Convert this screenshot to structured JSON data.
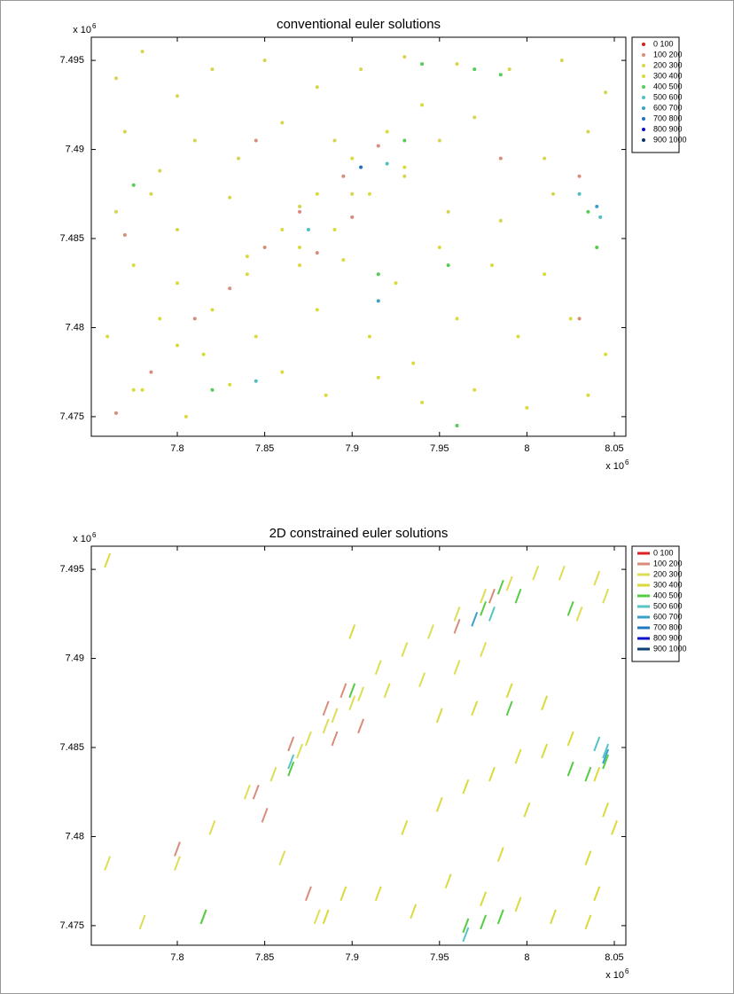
{
  "chart_data": [
    {
      "type": "scatter",
      "marker": "dot",
      "title": "conventional euler solutions",
      "x_multiplier": {
        "base": "x 10",
        "power": "6"
      },
      "y_multiplier": {
        "base": "x 10",
        "power": "6"
      },
      "xlim": [
        7.7508,
        8.0566
      ],
      "ylim": [
        7.4739,
        7.4963
      ],
      "xticks": [
        7.8,
        7.85,
        7.9,
        7.95,
        8,
        8.05
      ],
      "yticks": [
        7.475,
        7.48,
        7.485,
        7.49,
        7.495
      ],
      "legend": "outside-right",
      "series": [
        {
          "name": "0 100",
          "color": "#d02020",
          "x": [],
          "y": []
        },
        {
          "name": "100 200",
          "color": "#d98c7a",
          "x": [
            7.765,
            7.785,
            7.81,
            7.83,
            7.85,
            7.87,
            7.895,
            7.915,
            7.88,
            7.9,
            7.77,
            7.845,
            7.985,
            8.03,
            8.03
          ],
          "y": [
            7.4752,
            7.4775,
            7.4805,
            7.4822,
            7.4845,
            7.4865,
            7.4885,
            7.4902,
            7.4842,
            7.4862,
            7.4852,
            7.4905,
            7.4895,
            7.4885,
            7.4805
          ]
        },
        {
          "name": "200 300",
          "color": "#d6d64e",
          "x": [
            7.765,
            7.78,
            7.8,
            7.82,
            7.85,
            7.88,
            7.905,
            7.93,
            7.96,
            7.99,
            8.02,
            8.045,
            7.77,
            7.79,
            7.81,
            7.835,
            7.86,
            7.89,
            7.95,
            7.97,
            8.01,
            8.035,
            7.765,
            7.785,
            7.8,
            7.83,
            7.87,
            7.9,
            7.93,
            7.955,
            7.985,
            8.015
          ],
          "y": [
            7.494,
            7.4955,
            7.493,
            7.4945,
            7.495,
            7.4935,
            7.4945,
            7.4952,
            7.4948,
            7.4945,
            7.495,
            7.4932,
            7.491,
            7.4888,
            7.4905,
            7.4895,
            7.4915,
            7.4905,
            7.4905,
            7.4918,
            7.4895,
            7.491,
            7.4865,
            7.4875,
            7.4855,
            7.4873,
            7.4868,
            7.4875,
            7.4885,
            7.4865,
            7.486,
            7.4875
          ]
        },
        {
          "name": "300 400",
          "color": "#dada3a",
          "x": [
            7.775,
            7.8,
            7.84,
            7.87,
            7.895,
            7.925,
            7.95,
            7.98,
            8.01,
            8.04,
            7.76,
            7.79,
            7.815,
            7.845,
            7.88,
            7.91,
            7.935,
            7.96,
            7.995,
            8.025,
            8.045,
            7.775,
            7.805,
            7.83,
            7.86,
            7.885,
            7.915,
            7.94,
            7.97,
            8.0,
            8.035,
            7.78,
            7.8,
            7.82,
            7.84,
            7.86,
            7.88,
            7.9,
            7.92,
            7.94,
            7.87,
            7.89,
            7.91,
            7.93
          ],
          "y": [
            7.4835,
            7.4825,
            7.484,
            7.4845,
            7.4838,
            7.4825,
            7.4845,
            7.4835,
            7.483,
            7.4845,
            7.4795,
            7.4805,
            7.4785,
            7.4795,
            7.481,
            7.4795,
            7.478,
            7.4805,
            7.4795,
            7.4805,
            7.4785,
            7.4765,
            7.475,
            7.4768,
            7.4775,
            7.4762,
            7.4772,
            7.4758,
            7.4765,
            7.4755,
            7.4762,
            7.4765,
            7.479,
            7.481,
            7.483,
            7.4855,
            7.4875,
            7.4895,
            7.491,
            7.4925,
            7.4835,
            7.4855,
            7.4875,
            7.489
          ]
        },
        {
          "name": "400 500",
          "color": "#55cc55",
          "x": [
            7.985,
            7.97,
            7.94,
            7.915,
            7.955,
            8.035,
            8.04,
            7.96,
            7.82,
            7.93,
            7.775
          ],
          "y": [
            7.4942,
            7.4945,
            7.4948,
            7.483,
            7.4835,
            7.4865,
            7.4845,
            7.4745,
            7.4765,
            7.4905,
            7.488
          ]
        },
        {
          "name": "500 600",
          "color": "#4cc0c0",
          "x": [
            7.845,
            7.875,
            7.92,
            8.03,
            8.042
          ],
          "y": [
            7.477,
            7.4855,
            7.4892,
            7.4875,
            7.4862
          ]
        },
        {
          "name": "600 700",
          "color": "#3aa0c8",
          "x": [
            8.04,
            7.915
          ],
          "y": [
            7.4868,
            7.4815
          ]
        },
        {
          "name": "700 800",
          "color": "#2070c0",
          "x": [
            7.905
          ],
          "y": [
            7.489
          ]
        },
        {
          "name": "800 900",
          "color": "#1010c0",
          "x": [],
          "y": []
        },
        {
          "name": "900 1000",
          "color": "#103070",
          "x": [],
          "y": []
        }
      ]
    },
    {
      "type": "scatter",
      "marker": "segment",
      "title": "2D constrained euler solutions",
      "x_multiplier": {
        "base": "x 10",
        "power": "6"
      },
      "y_multiplier": {
        "base": "x 10",
        "power": "6"
      },
      "xlim": [
        7.7508,
        8.0566
      ],
      "ylim": [
        7.4739,
        7.4963
      ],
      "xticks": [
        7.8,
        7.85,
        7.9,
        7.95,
        8,
        8.05
      ],
      "yticks": [
        7.475,
        7.48,
        7.485,
        7.49,
        7.495
      ],
      "legend": "outside-right",
      "series": [
        {
          "name": "0 100",
          "color": "#e02020",
          "x": [],
          "y": []
        },
        {
          "name": "100 200",
          "color": "#d98c7a",
          "x": [
            7.845,
            7.865,
            7.885,
            7.895,
            7.905,
            7.89,
            7.8,
            7.85,
            7.96,
            7.98,
            7.875
          ],
          "y": [
            7.4825,
            7.4852,
            7.4872,
            7.4882,
            7.4862,
            7.4855,
            7.4793,
            7.4812,
            7.4918,
            7.4935,
            7.4768
          ]
        },
        {
          "name": "200 300",
          "color": "#dede55",
          "x": [
            7.76,
            7.78,
            7.8,
            7.815,
            7.82,
            7.84,
            7.855,
            7.86,
            7.875,
            7.88,
            7.89,
            7.905,
            7.915,
            7.93,
            7.945,
            7.96,
            7.975,
            7.99,
            8.005,
            8.02,
            8.04,
            8.045,
            8.03,
            7.87,
            7.885,
            7.9,
            7.92,
            7.94,
            7.96,
            7.975
          ],
          "y": [
            7.4785,
            7.4752,
            7.4785,
            7.4755,
            7.4805,
            7.4825,
            7.4835,
            7.4788,
            7.4855,
            7.4755,
            7.4868,
            7.488,
            7.4895,
            7.4905,
            7.4915,
            7.4925,
            7.4935,
            7.4942,
            7.4948,
            7.4948,
            7.4945,
            7.4935,
            7.4925,
            7.4848,
            7.4862,
            7.4875,
            7.4882,
            7.4888,
            7.4895,
            7.4905
          ]
        },
        {
          "name": "300 400",
          "color": "#dada3a",
          "x": [
            7.95,
            7.97,
            7.99,
            8.01,
            7.93,
            7.95,
            7.965,
            7.98,
            7.995,
            8.01,
            8.025,
            8.04,
            8.045,
            8.0,
            7.985,
            7.915,
            7.935,
            7.955,
            7.975,
            7.995,
            8.015,
            8.035,
            8.04,
            8.05,
            7.895,
            7.885,
            7.76,
            8.035,
            7.9
          ],
          "y": [
            7.4868,
            7.4872,
            7.4882,
            7.4875,
            7.4805,
            7.4818,
            7.4828,
            7.4835,
            7.4845,
            7.4848,
            7.4855,
            7.4835,
            7.4815,
            7.4815,
            7.479,
            7.4768,
            7.4758,
            7.4775,
            7.4765,
            7.4762,
            7.4755,
            7.4752,
            7.4768,
            7.4805,
            7.4768,
            7.4755,
            7.4955,
            7.4788,
            7.4915
          ]
        },
        {
          "name": "400 500",
          "color": "#55cc44",
          "x": [
            7.985,
            7.995,
            7.975,
            7.99,
            8.025,
            8.035,
            8.045,
            8.025,
            7.815,
            7.975,
            7.985,
            7.965,
            7.9,
            7.865
          ],
          "y": [
            7.494,
            7.4935,
            7.4928,
            7.4872,
            7.4838,
            7.4835,
            7.4842,
            7.4928,
            7.4755,
            7.4752,
            7.4755,
            7.475,
            7.4882,
            7.4838
          ]
        },
        {
          "name": "500 600",
          "color": "#55c4c4",
          "x": [
            7.865,
            7.98,
            8.04,
            7.965,
            8.045
          ],
          "y": [
            7.4842,
            7.4925,
            7.4852,
            7.4745,
            7.4848
          ]
        },
        {
          "name": "600 700",
          "color": "#3aa0c8",
          "x": [
            8.045,
            7.97
          ],
          "y": [
            7.4845,
            7.4922
          ]
        },
        {
          "name": "700 800",
          "color": "#2078c0",
          "x": [],
          "y": []
        },
        {
          "name": "800 900",
          "color": "#1010d0",
          "x": [],
          "y": []
        },
        {
          "name": "900 1000",
          "color": "#104070",
          "x": [],
          "y": []
        }
      ]
    }
  ]
}
